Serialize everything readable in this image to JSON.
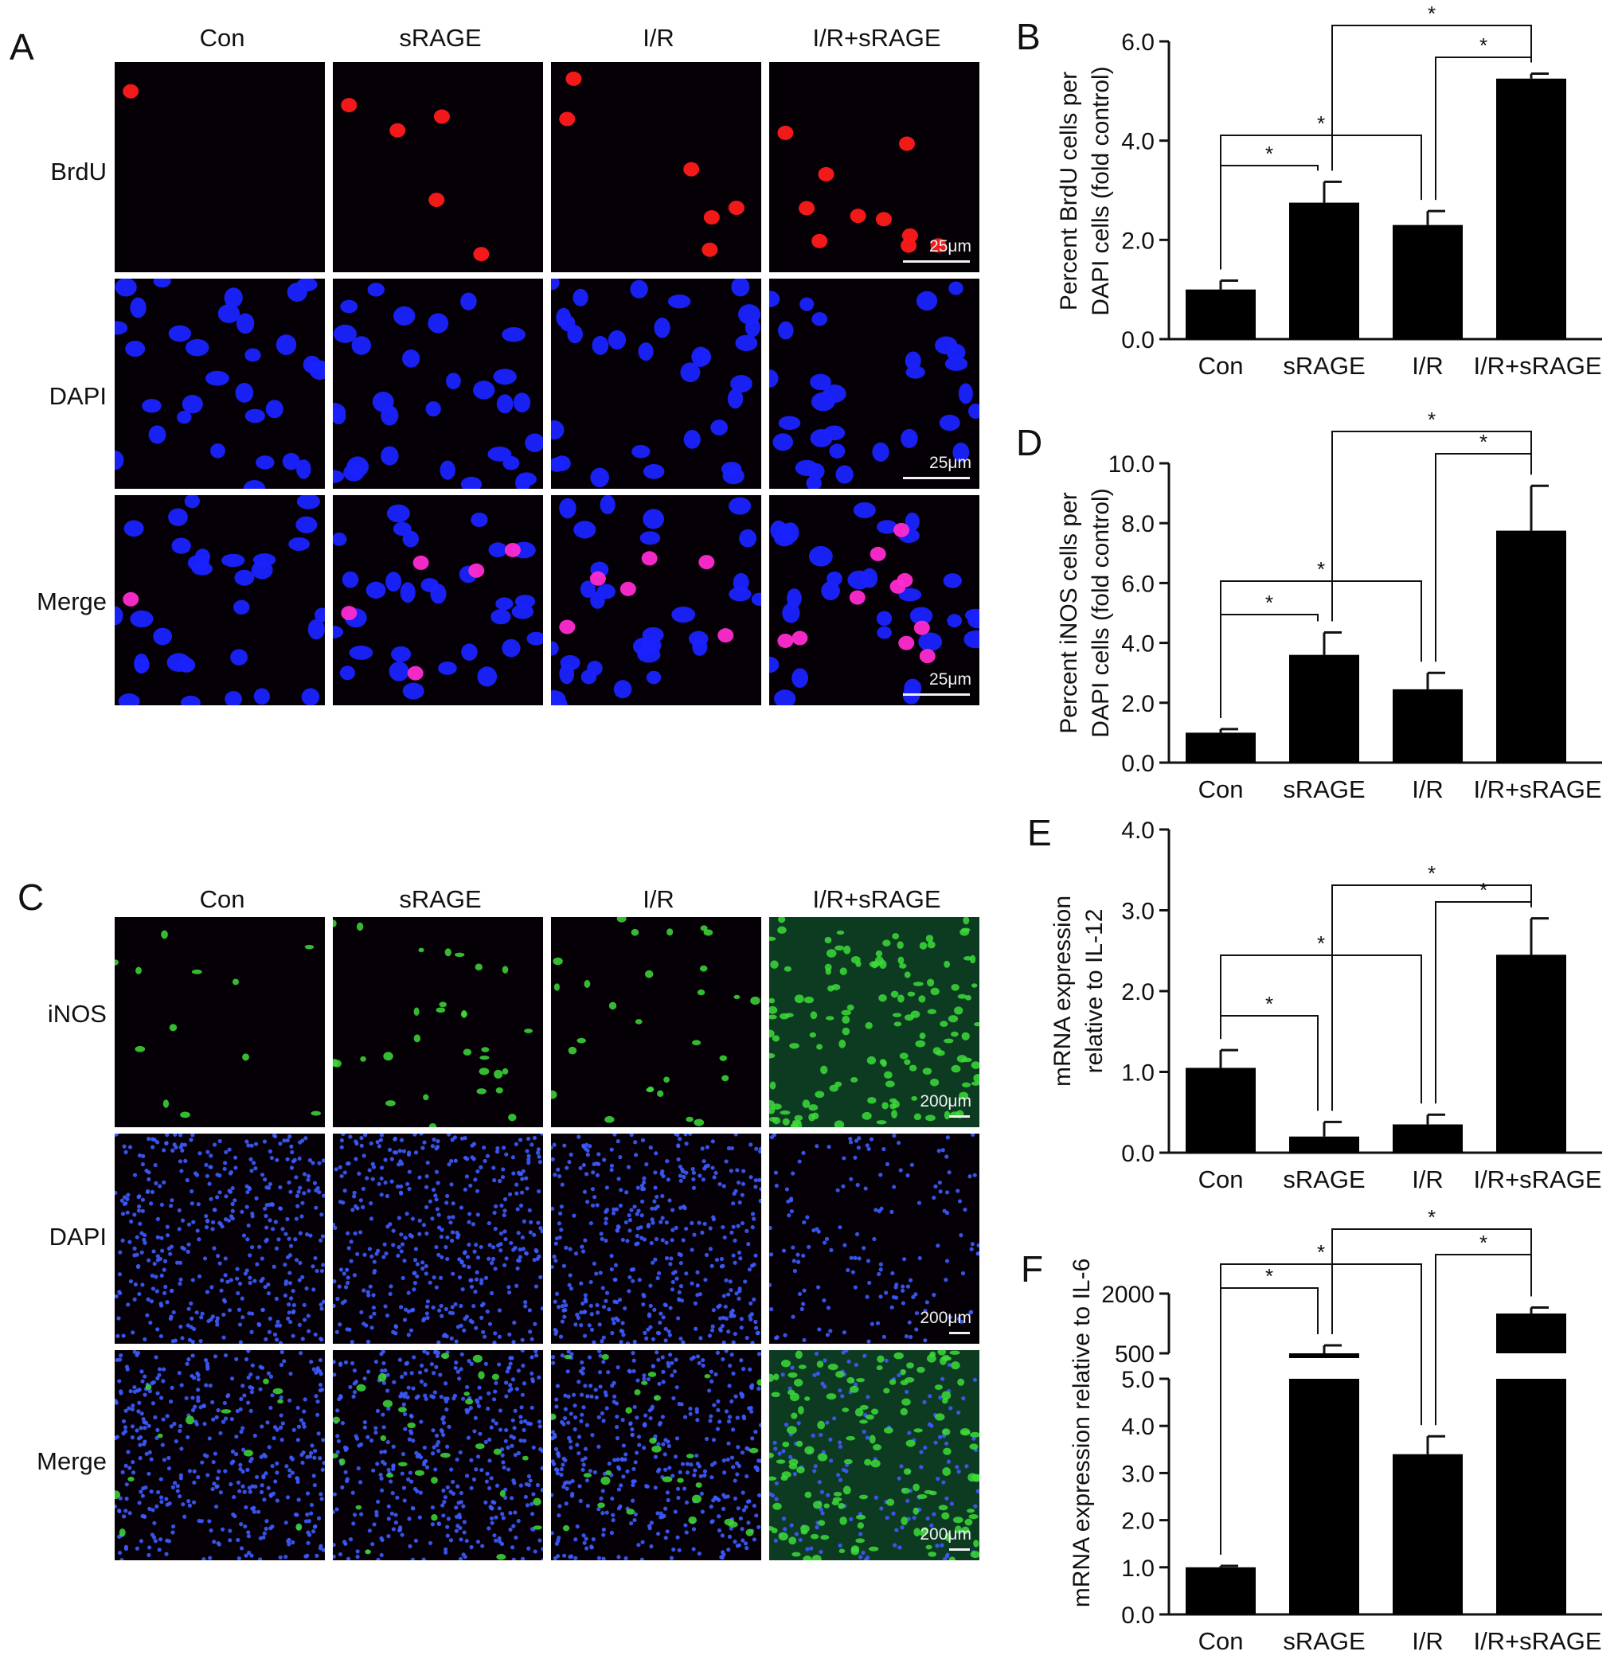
{
  "panels": {
    "A": {
      "letter": "A",
      "columns": [
        "Con",
        "sRAGE",
        "I/R",
        "I/R+sRAGE"
      ],
      "rows": [
        "BrdU",
        "DAPI",
        "Merge"
      ],
      "scale_bar": "25μm"
    },
    "C": {
      "letter": "C",
      "columns": [
        "Con",
        "sRAGE",
        "I/R",
        "I/R+sRAGE"
      ],
      "rows": [
        "iNOS",
        "DAPI",
        "Merge"
      ],
      "scale_bar": "200μm"
    }
  },
  "colors": {
    "bar": "#000000",
    "brdu": "#ff1a1a",
    "dapi": "#1a22ff",
    "merge": "#ff2bd0",
    "inos": "#3ddc3a"
  },
  "chart_data": [
    {
      "letter": "B",
      "type": "bar",
      "categories": [
        "Con",
        "sRAGE",
        "I/R",
        "I/R+sRAGE"
      ],
      "values": [
        1.0,
        2.75,
        2.3,
        5.25
      ],
      "errors": [
        0.18,
        0.42,
        0.28,
        0.1
      ],
      "ylabel": [
        "Percent BrdU cells per",
        "DAPI cells (fold control)"
      ],
      "ylim": [
        0,
        6
      ],
      "yticks": [
        "0.0",
        "2.0",
        "4.0",
        "6.0"
      ],
      "significance": [
        "*",
        "*",
        "*",
        "*"
      ]
    },
    {
      "letter": "D",
      "type": "bar",
      "categories": [
        "Con",
        "sRAGE",
        "I/R",
        "I/R+sRAGE"
      ],
      "values": [
        1.0,
        3.6,
        2.45,
        7.75
      ],
      "errors": [
        0.12,
        0.75,
        0.55,
        1.5
      ],
      "ylabel": [
        "Percent iNOS cells per",
        "DAPI cells (fold control)"
      ],
      "ylim": [
        0,
        10
      ],
      "yticks": [
        "0.0",
        "2.0",
        "4.0",
        "6.0",
        "8.0",
        "10.0"
      ],
      "significance": [
        "*",
        "*",
        "*",
        "*"
      ]
    },
    {
      "letter": "E",
      "type": "bar",
      "categories": [
        "Con",
        "sRAGE",
        "I/R",
        "I/R+sRAGE"
      ],
      "values": [
        1.05,
        0.2,
        0.35,
        2.45
      ],
      "errors": [
        0.22,
        0.18,
        0.12,
        0.45
      ],
      "ylabel": [
        "mRNA expression",
        "relative to IL-12"
      ],
      "ylim": [
        0,
        4
      ],
      "yticks": [
        "0.0",
        "1.0",
        "2.0",
        "3.0",
        "4.0"
      ],
      "significance": [
        "*",
        "*",
        "*",
        "*"
      ]
    },
    {
      "letter": "F",
      "type": "bar",
      "categories": [
        "Con",
        "sRAGE",
        "I/R",
        "I/R+sRAGE"
      ],
      "values": [
        1.0,
        500,
        3.4,
        1500
      ],
      "errors": [
        0.03,
        200,
        0.38,
        150
      ],
      "ylabel": [
        "mRNA expression relative to IL-6"
      ],
      "ylim": [
        0,
        2000
      ],
      "axis_break": [
        5.0,
        500
      ],
      "yticks_lower": [
        "0.0",
        "1.0",
        "2.0",
        "3.0",
        "4.0",
        "5.0"
      ],
      "yticks_upper": [
        "500",
        "2000"
      ],
      "significance": [
        "*",
        "*",
        "*",
        "*"
      ]
    }
  ]
}
